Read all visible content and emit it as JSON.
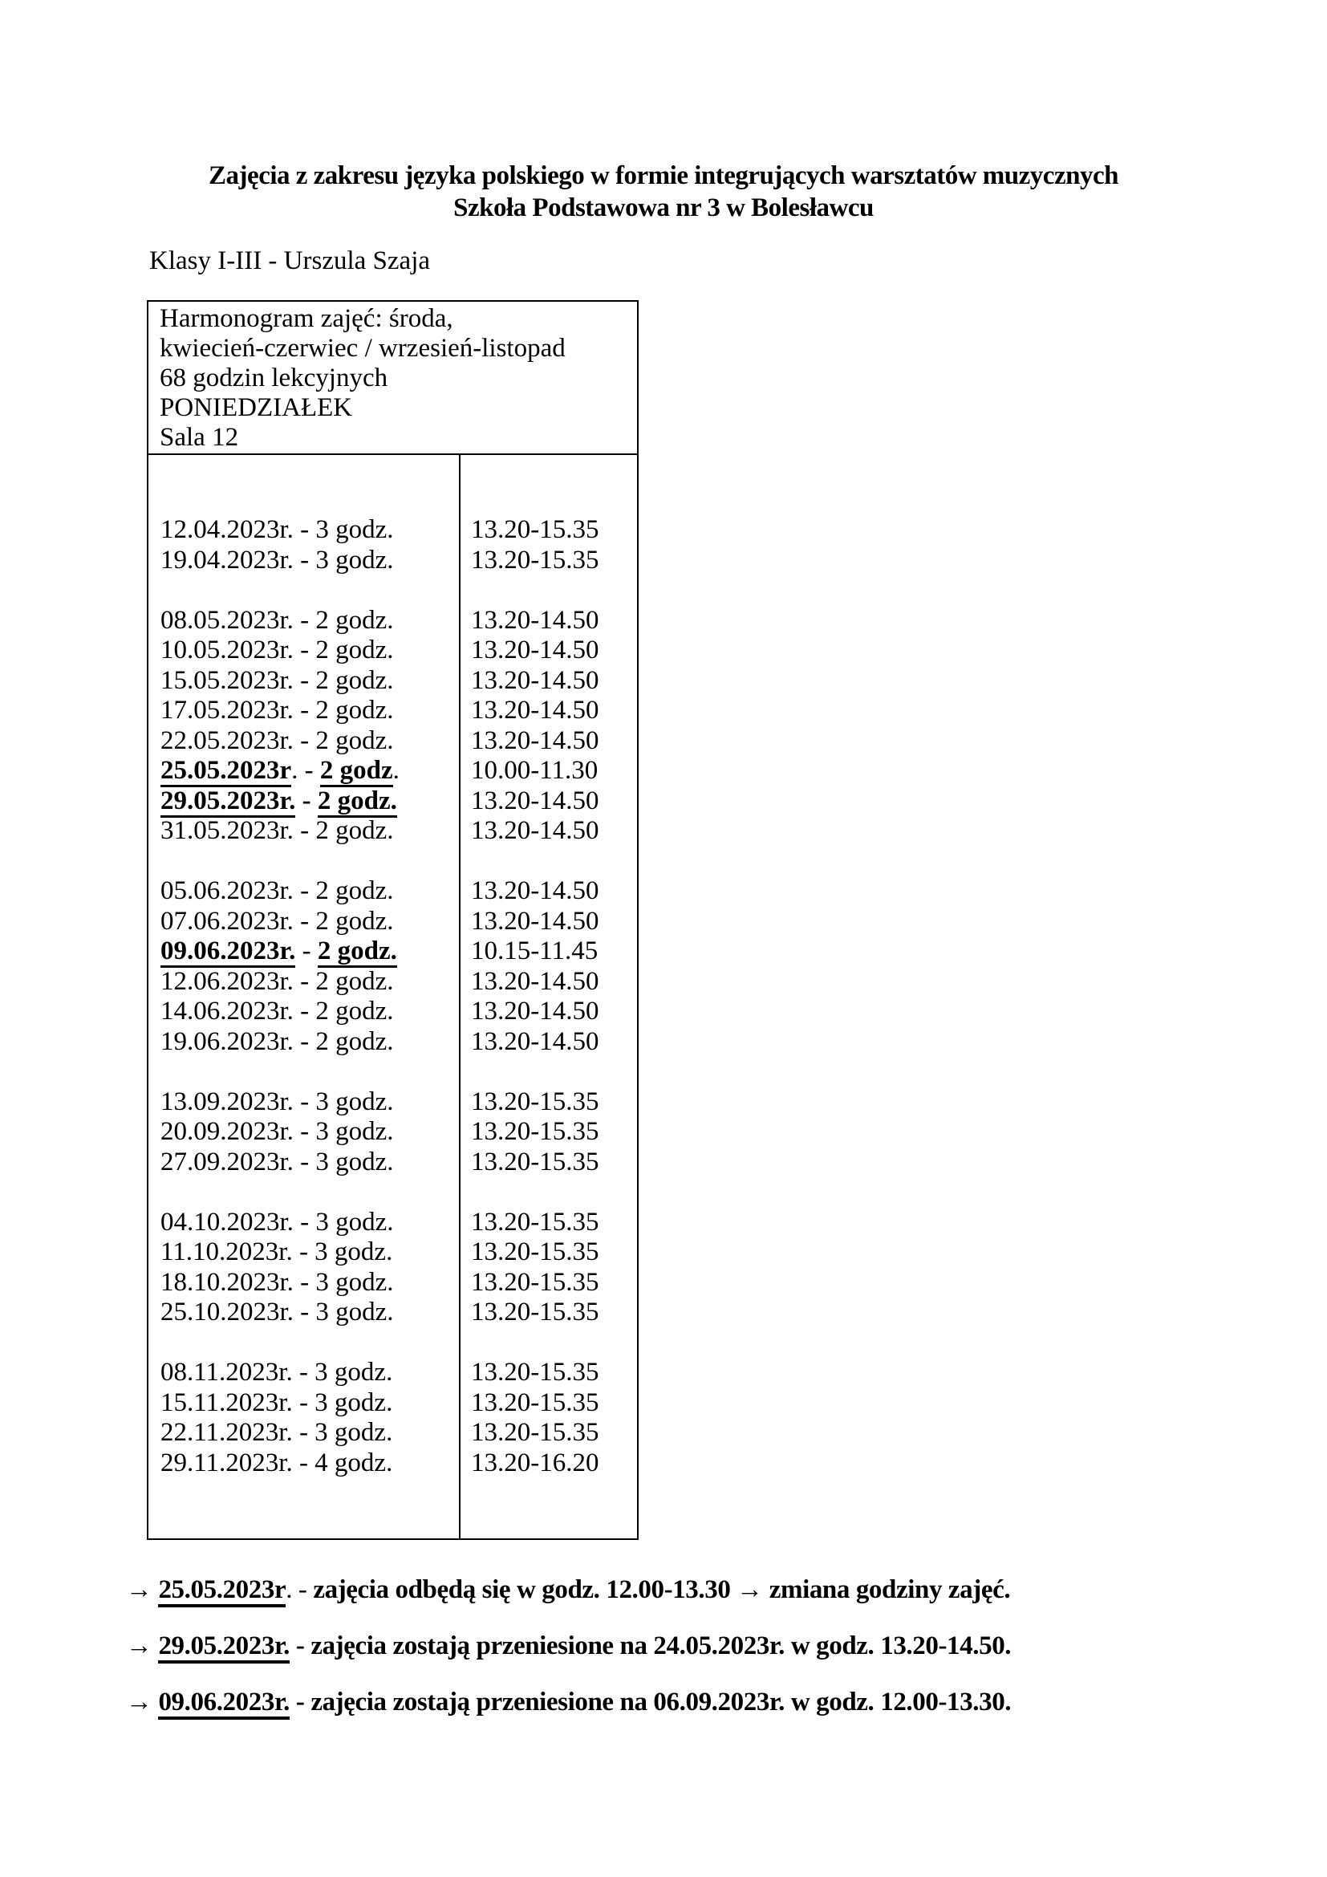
{
  "document": {
    "title_line1": "Zajęcia z zakresu języka polskiego w formie integrujących warsztatów muzycznych",
    "title_line2": "Szkoła Podstawowa nr 3 w Bolesławcu",
    "subtitle": "Klasy I-III - Urszula Szaja"
  },
  "schedule_table": {
    "header_lines": [
      "Harmonogram zajęć: środa,",
      "kwiecień-czerwiec / wrzesień-listopad",
      "68 godzin lekcyjnych",
      "PONIEDZIAŁEK",
      "Sala 12"
    ],
    "rows": [
      {
        "blank": true
      },
      {
        "blank": true
      },
      {
        "left": [
          {
            "t": "12.04.2023r. - 3 godz."
          }
        ],
        "time": "13.20-15.35"
      },
      {
        "left": [
          {
            "t": "19.04.2023r. - 3 godz."
          }
        ],
        "time": "13.20-15.35"
      },
      {
        "blank": true
      },
      {
        "left": [
          {
            "t": "08.05.2023r. - 2 godz."
          }
        ],
        "time": "13.20-14.50"
      },
      {
        "left": [
          {
            "t": "10.05.2023r. - 2 godz."
          }
        ],
        "time": "13.20-14.50"
      },
      {
        "left": [
          {
            "t": "15.05.2023r. - 2 godz."
          }
        ],
        "time": "13.20-14.50"
      },
      {
        "left": [
          {
            "t": "17.05.2023r. - 2 godz."
          }
        ],
        "time": "13.20-14.50"
      },
      {
        "left": [
          {
            "t": "22.05.2023r. - 2 godz."
          }
        ],
        "time": "13.20-14.50"
      },
      {
        "left": [
          {
            "t": "25.05.2023r",
            "b": 1,
            "u": 1
          },
          {
            "t": ". - "
          },
          {
            "t": "2 godz",
            "b": 1,
            "u": 1
          },
          {
            "t": "."
          }
        ],
        "time": "10.00-11.30"
      },
      {
        "left": [
          {
            "t": "29.05.2023r.",
            "b": 1,
            "u": 1
          },
          {
            "t": " - ",
            "b": 1
          },
          {
            "t": "2 godz.",
            "b": 1,
            "u": 1
          }
        ],
        "time": "13.20-14.50"
      },
      {
        "left": [
          {
            "t": "31.05.2023r. - 2 godz."
          }
        ],
        "time": "13.20-14.50"
      },
      {
        "blank": true
      },
      {
        "left": [
          {
            "t": "05.06.2023r. - 2 godz."
          }
        ],
        "time": "13.20-14.50"
      },
      {
        "left": [
          {
            "t": "07.06.2023r. - 2 godz."
          }
        ],
        "time": "13.20-14.50"
      },
      {
        "left": [
          {
            "t": "09.06.2023r.",
            "b": 1,
            "u": 1
          },
          {
            "t": " - "
          },
          {
            "t": "2 godz.",
            "b": 1,
            "u": 1
          }
        ],
        "time": "10.15-11.45"
      },
      {
        "left": [
          {
            "t": "12.06.2023r. - 2 godz."
          }
        ],
        "time": "13.20-14.50"
      },
      {
        "left": [
          {
            "t": "14.06.2023r. - 2 godz."
          }
        ],
        "time": "13.20-14.50"
      },
      {
        "left": [
          {
            "t": "19.06.2023r. - 2 godz."
          }
        ],
        "time": "13.20-14.50"
      },
      {
        "blank": true
      },
      {
        "left": [
          {
            "t": "13.09.2023r. - 3 godz."
          }
        ],
        "time": "13.20-15.35"
      },
      {
        "left": [
          {
            "t": "20.09.2023r. - 3 godz."
          }
        ],
        "time": "13.20-15.35"
      },
      {
        "left": [
          {
            "t": "27.09.2023r. - 3 godz."
          }
        ],
        "time": "13.20-15.35"
      },
      {
        "blank": true
      },
      {
        "left": [
          {
            "t": "04.10.2023r. - 3 godz."
          }
        ],
        "time": "13.20-15.35"
      },
      {
        "left": [
          {
            "t": "11.10.2023r. - 3 godz."
          }
        ],
        "time": "13.20-15.35"
      },
      {
        "left": [
          {
            "t": "18.10.2023r. - 3 godz."
          }
        ],
        "time": "13.20-15.35"
      },
      {
        "left": [
          {
            "t": "25.10.2023r. - 3 godz."
          }
        ],
        "time": "13.20-15.35"
      },
      {
        "blank": true
      },
      {
        "left": [
          {
            "t": "08.11.2023r. - 3 godz."
          }
        ],
        "time": "13.20-15.35"
      },
      {
        "left": [
          {
            "t": "15.11.2023r. - 3 godz."
          }
        ],
        "time": "13.20-15.35"
      },
      {
        "left": [
          {
            "t": "22.11.2023r. - 3 godz."
          }
        ],
        "time": "13.20-15.35"
      },
      {
        "left": [
          {
            "t": "29.11.2023r. - 4 godz."
          }
        ],
        "time": "13.20-16.20"
      },
      {
        "blank": true
      },
      {
        "blank": true
      }
    ]
  },
  "notes": [
    {
      "segments": [
        {
          "t": "→ "
        },
        {
          "t": "25.05.2023r",
          "b": 1,
          "u": 1
        },
        {
          "t": ". - "
        },
        {
          "t": "zajęcia odbędą się w godz. 12.00-13.30 → zmiana godziny zajęć.",
          "b": 1
        }
      ]
    },
    {
      "segments": [
        {
          "t": "→ "
        },
        {
          "t": "29.05.2023r.",
          "b": 1,
          "u": 1
        },
        {
          "t": " - ",
          "b": 1
        },
        {
          "t": "zajęcia zostają przeniesione na 24.05.2023r. w godz. 13.20-14.50.",
          "b": 1
        }
      ]
    },
    {
      "segments": [
        {
          "t": "→ "
        },
        {
          "t": "09.06.2023r.",
          "b": 1,
          "u": 1
        },
        {
          "t": " - ",
          "b": 1
        },
        {
          "t": "zajęcia zostają przeniesione na 06.09.2023r. w godz. 12.00-13.30.",
          "b": 1
        }
      ]
    }
  ],
  "colors": {
    "text": "#000000",
    "background": "#ffffff",
    "border": "#000000"
  }
}
